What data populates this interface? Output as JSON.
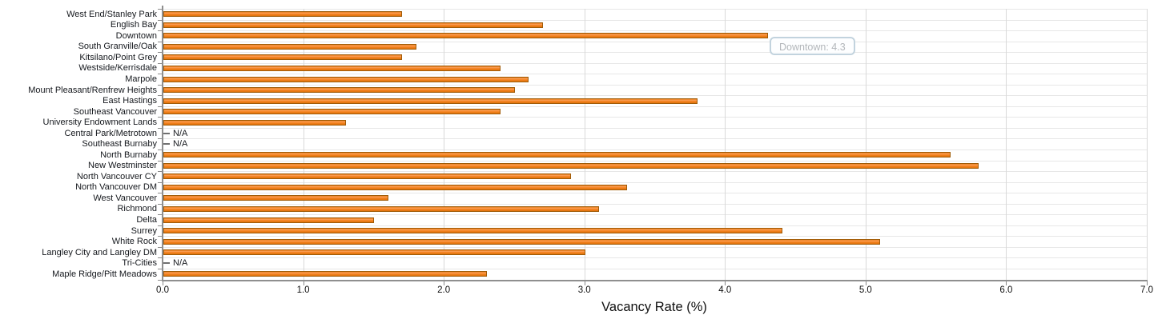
{
  "chart_data": {
    "type": "bar",
    "orientation": "horizontal",
    "title": "",
    "xlabel": "Vacancy Rate (%)",
    "ylabel": "",
    "xlim": [
      0.0,
      7.0
    ],
    "x_ticks": [
      "0.0",
      "1.0",
      "2.0",
      "3.0",
      "4.0",
      "5.0",
      "6.0",
      "7.0"
    ],
    "grid": true,
    "legend": "none",
    "na_label": "N/A",
    "bar_color": "#F5821F",
    "bar_border_color": "#A05C08",
    "categories": [
      "West End/Stanley Park",
      "English Bay",
      "Downtown",
      "South Granville/Oak",
      "Kitsilano/Point Grey",
      "Westside/Kerrisdale",
      "Marpole",
      "Mount Pleasant/Renfrew Heights",
      "East Hastings",
      "Southeast Vancouver",
      "University Endowment Lands",
      "Central Park/Metrotown",
      "Southeast Burnaby",
      "North Burnaby",
      "New Westminster",
      "North Vancouver CY",
      "North Vancouver DM",
      "West Vancouver",
      "Richmond",
      "Delta",
      "Surrey",
      "White Rock",
      "Langley City and Langley DM",
      "Tri-Cities",
      "Maple Ridge/Pitt Meadows"
    ],
    "values": [
      1.7,
      2.7,
      4.3,
      1.8,
      1.7,
      2.4,
      2.6,
      2.5,
      3.8,
      2.4,
      1.3,
      null,
      null,
      5.6,
      5.8,
      2.9,
      3.3,
      1.6,
      3.1,
      1.5,
      4.4,
      5.1,
      3.0,
      null,
      2.3
    ]
  },
  "tooltip": {
    "text": "Downtown: 4.3"
  }
}
